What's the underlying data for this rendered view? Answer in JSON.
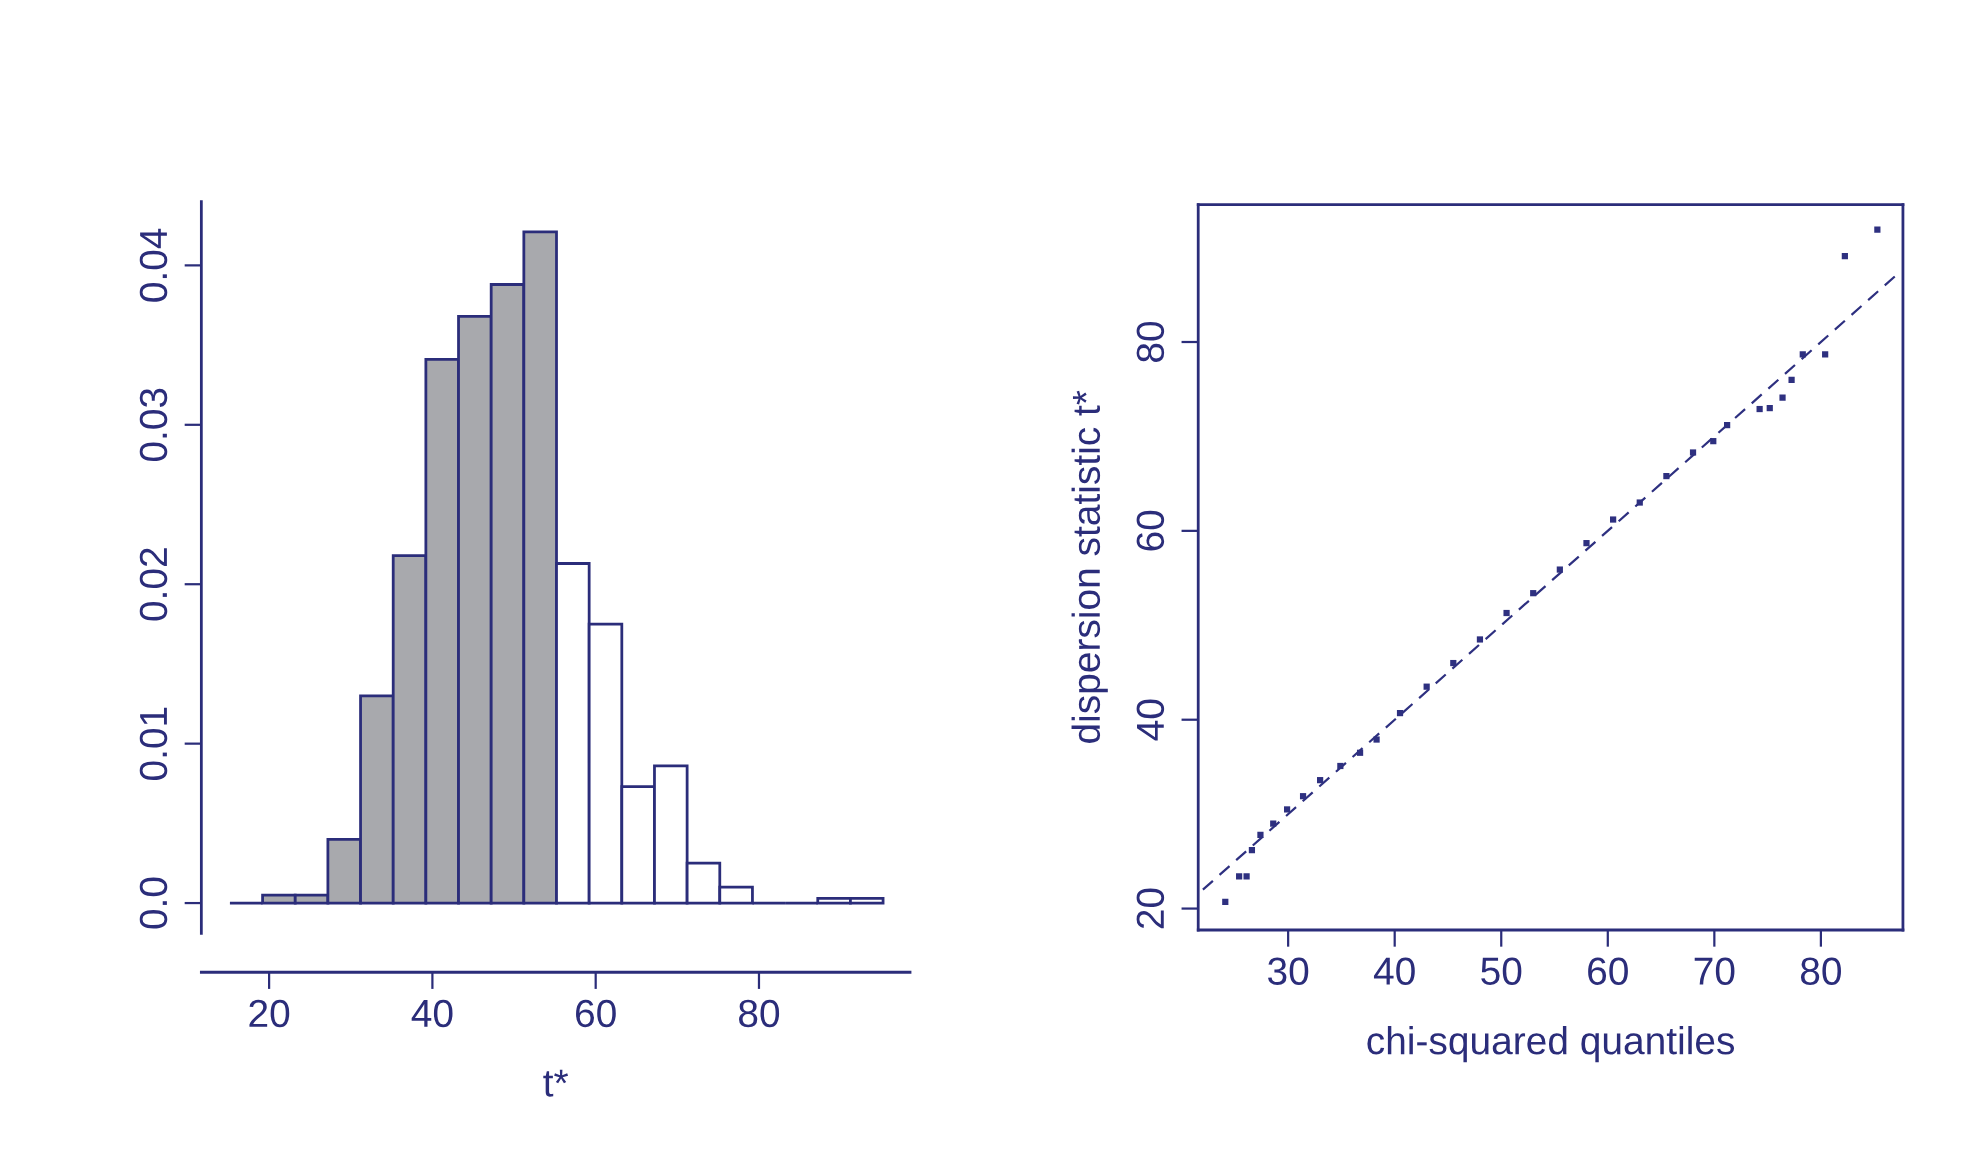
{
  "chart_data": [
    {
      "type": "histogram",
      "xlabel": "t*",
      "bins": [
        15.2,
        19.2,
        23.2,
        27.2,
        31.2,
        35.2,
        39.2,
        43.2,
        47.2,
        51.2,
        55.2,
        59.2,
        63.2,
        67.2,
        71.2,
        75.2,
        79.2,
        83.2,
        87.2,
        91.2,
        95.2
      ],
      "values": [
        0,
        0.0005,
        0.0005,
        0.004,
        0.013,
        0.0218,
        0.0341,
        0.0368,
        0.0388,
        0.0421,
        0.0213,
        0.0175,
        0.0073,
        0.0086,
        0.0025,
        0.001,
        0,
        0,
        0.0003,
        0.0003
      ],
      "colors": [
        "#2b2d7a",
        "#a8a9ad",
        "#a8a9ad",
        "#a8a9ad",
        "#a8a9ad",
        "#a8a9ad",
        "#a8a9ad",
        "#a8a9ad",
        "#a8a9ad",
        "#a8a9ad",
        "#ffffff",
        "#ffffff",
        "#ffffff",
        "#ffffff",
        "#ffffff",
        "#ffffff",
        "#2b2d7a",
        "#2b2d7a",
        "#ffffff",
        "#ffffff"
      ],
      "xlim": [
        11.7,
        98.5
      ],
      "ylim": [
        -0.0019,
        0.044
      ],
      "xticks": [
        20,
        40,
        60,
        80
      ],
      "yticks": [
        {
          "value": 0,
          "label": "0.0"
        },
        0.01,
        0.02,
        0.03,
        0.04
      ],
      "grid": false,
      "legend": false
    },
    {
      "type": "scatter",
      "xlabel": "chi-squared quantiles",
      "ylabel": "dispersion statistic t*",
      "marker": "square",
      "grid": false,
      "legend": false,
      "xlim": [
        21.56,
        87.7
      ],
      "ylim": [
        17.73,
        94.55
      ],
      "xticks": [
        30,
        40,
        50,
        60,
        70,
        80
      ],
      "yticks": [
        20,
        40,
        60,
        80
      ],
      "series": [
        {
          "type": "scatter",
          "color": "#2e3080",
          "x": [
            24.1,
            25.4,
            26.1,
            26.6,
            27.4,
            28.6,
            29.9,
            31.4,
            33,
            34.9,
            36.75,
            38.3,
            40.5,
            43,
            45.5,
            48,
            50.5,
            53,
            55.5,
            58,
            60.5,
            63,
            65.5,
            68,
            69.9,
            71.2,
            74.25,
            75.2,
            76.4,
            77.25,
            78.3,
            80.4,
            82.25,
            85.3
          ],
          "values": [
            20.7,
            23.4,
            23.4,
            26.2,
            27.8,
            29.0,
            30.5,
            31.9,
            33.6,
            35.1,
            36.5,
            37.9,
            40.7,
            43.5,
            46,
            48.5,
            51.3,
            53.4,
            55.9,
            58.7,
            61.2,
            63,
            65.8,
            68.3,
            69.5,
            71.2,
            72.9,
            73,
            74.1,
            76,
            78.7,
            78.7,
            89.1,
            91.9
          ]
        },
        {
          "type": "line",
          "color": "#2e3080",
          "line_style": "dashed",
          "marker": "none",
          "x": [
            22,
            87
          ],
          "values": [
            22,
            87
          ]
        }
      ]
    }
  ]
}
